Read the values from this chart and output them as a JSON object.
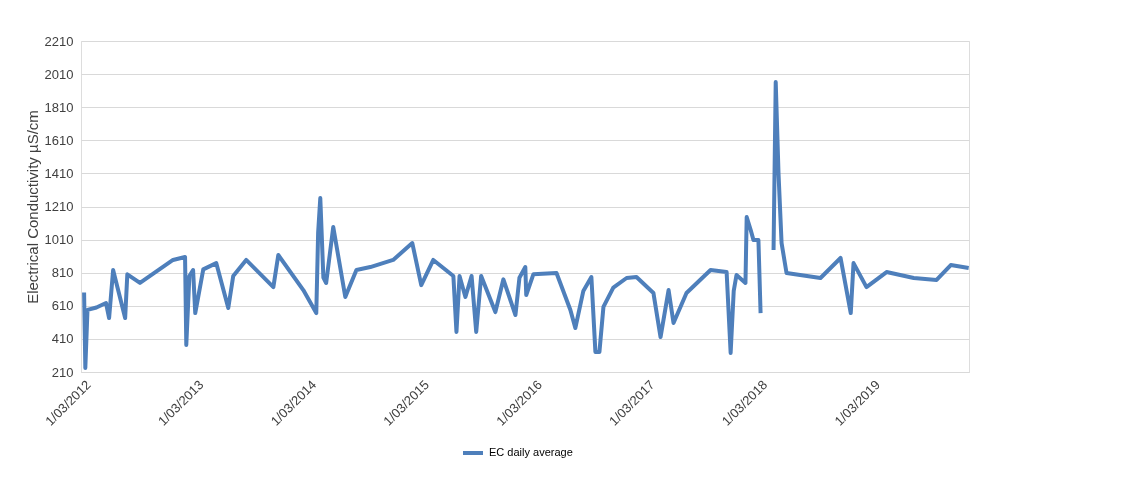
{
  "chart_data": {
    "type": "line",
    "ylabel": "Electrical Conductivity µS/cm",
    "x": [
      "2012-03-01",
      "2012-03-05",
      "2012-03-12",
      "2012-04-10",
      "2012-05-11",
      "2012-05-21",
      "2012-06-03",
      "2012-07-12",
      "2012-07-19",
      "2012-08-29",
      "2012-12-14",
      "2013-01-22",
      "2013-01-26",
      "2013-02-05",
      "2013-02-17",
      "2013-02-24",
      "2013-03-22",
      "2013-05-03",
      "2013-06-11",
      "2013-06-27",
      "2013-08-08",
      "2013-11-04",
      "2013-11-20",
      "2014-02-09",
      "2014-03-23",
      "2014-03-29",
      "2014-04-05",
      "2014-04-15",
      "2014-04-24",
      "2014-05-17",
      "2014-06-25",
      "2014-07-31",
      "2014-09-14",
      "2014-11-27",
      "2015-01-28",
      "2015-02-26",
      "2015-04-06",
      "2015-06-10",
      "2015-06-20",
      "2015-06-30",
      "2015-07-19",
      "2015-08-08",
      "2015-08-23",
      "2015-09-08",
      "2015-10-24",
      "2015-11-19",
      "2015-12-28",
      "2016-01-10",
      "2016-01-29",
      "2016-02-01",
      "2016-02-24",
      "2016-05-09",
      "2016-06-23",
      "2016-07-09",
      "2016-08-04",
      "2016-08-30",
      "2016-09-12",
      "2016-09-25",
      "2016-10-08",
      "2016-11-09",
      "2016-12-22",
      "2017-01-23",
      "2017-03-19",
      "2017-04-11",
      "2017-05-07",
      "2017-05-23",
      "2017-07-04",
      "2017-09-20",
      "2017-11-11",
      "2017-11-24",
      "2017-12-04",
      "2017-12-13",
      "2018-01-11",
      "2018-01-15",
      "2018-01-28",
      "2018-02-06",
      "2018-02-22",
      "2018-03-01",
      "2018-03-20",
      "2018-04-12",
      "2018-04-19",
      "2018-04-28",
      "2018-05-08",
      "2018-05-24",
      "2018-09-11",
      "2018-11-15",
      "2018-12-18",
      "2018-12-27",
      "2019-02-07",
      "2019-04-13",
      "2019-07-10",
      "2019-09-22",
      "2019-11-07",
      "2020-01-04"
    ],
    "series": [
      {
        "name": "EC daily average",
        "color": "#4e7fbb",
        "values": [
          690,
          234,
          585,
          600,
          627,
          536,
          826,
          536,
          800,
          748,
          887,
          905,
          373,
          790,
          826,
          566,
          830,
          868,
          597,
          790,
          887,
          723,
          917,
          705,
          566,
          1050,
          1261,
          780,
          748,
          1086,
          663,
          826,
          844,
          887,
          989,
          735,
          887,
          790,
          452,
          790,
          663,
          790,
          452,
          790,
          572,
          770,
          554,
          780,
          844,
          675,
          800,
          808,
          585,
          476,
          700,
          784,
          331,
          331,
          603,
          720,
          778,
          784,
          687,
          421,
          705,
          506,
          687,
          826,
          814,
          325,
          700,
          796,
          748,
          1146,
          1068,
          1007,
          1007,
          566,
          null,
          947,
          1962,
          1412,
          989,
          808,
          778,
          899,
          566,
          868,
          723,
          814,
          778,
          766,
          856,
          838
        ]
      }
    ],
    "xlim": [
      "2012-02-20",
      "2020-01-05"
    ],
    "xticks": [
      {
        "value": "2012-03-01",
        "label": "1/03/2012"
      },
      {
        "value": "2013-03-01",
        "label": "1/03/2013"
      },
      {
        "value": "2014-03-01",
        "label": "1/03/2014"
      },
      {
        "value": "2015-03-01",
        "label": "1/03/2015"
      },
      {
        "value": "2016-03-01",
        "label": "1/03/2016"
      },
      {
        "value": "2017-03-01",
        "label": "1/03/2017"
      },
      {
        "value": "2018-03-01",
        "label": "1/03/2018"
      },
      {
        "value": "2019-03-01",
        "label": "1/03/2019"
      }
    ],
    "ylim": [
      210,
      2210
    ],
    "yticks": [
      210,
      410,
      610,
      810,
      1010,
      1210,
      1410,
      1610,
      1810,
      2010,
      2210
    ],
    "grid": "y",
    "legend": "bottom",
    "line_style": "solid",
    "marker": "none"
  }
}
